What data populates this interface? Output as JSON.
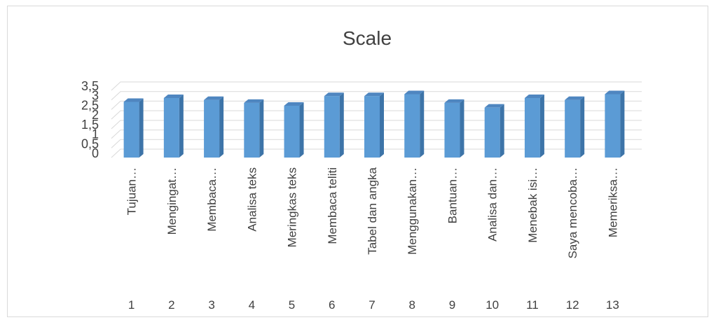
{
  "chart_data": {
    "type": "bar",
    "title": "Scale",
    "xlabel": "",
    "ylabel": "",
    "ylim": [
      0,
      3.5
    ],
    "yticks": [
      "0",
      "0,5",
      "1",
      "1,5",
      "2",
      "2,5",
      "3",
      "3,5"
    ],
    "grid": true,
    "three_d": true,
    "bar_color": "#5b9bd5",
    "index_labels": [
      "1",
      "2",
      "3",
      "4",
      "5",
      "6",
      "7",
      "8",
      "9",
      "10",
      "11",
      "12",
      "13"
    ],
    "categories": [
      "Tujuan…",
      "Mengingat…",
      "Membaca…",
      "Analisa teks",
      "Meringkas teks",
      "Membaca teliti",
      "Tabel dan angka",
      "Menggunakan…",
      "Bantuan…",
      "Analisa dan…",
      "Menebak isi…",
      "Saya mencoba…",
      "Memeriksa…"
    ],
    "values": [
      2.9,
      3.1,
      3.0,
      2.85,
      2.7,
      3.2,
      3.2,
      3.3,
      2.85,
      2.6,
      3.1,
      3.0,
      3.3
    ]
  }
}
